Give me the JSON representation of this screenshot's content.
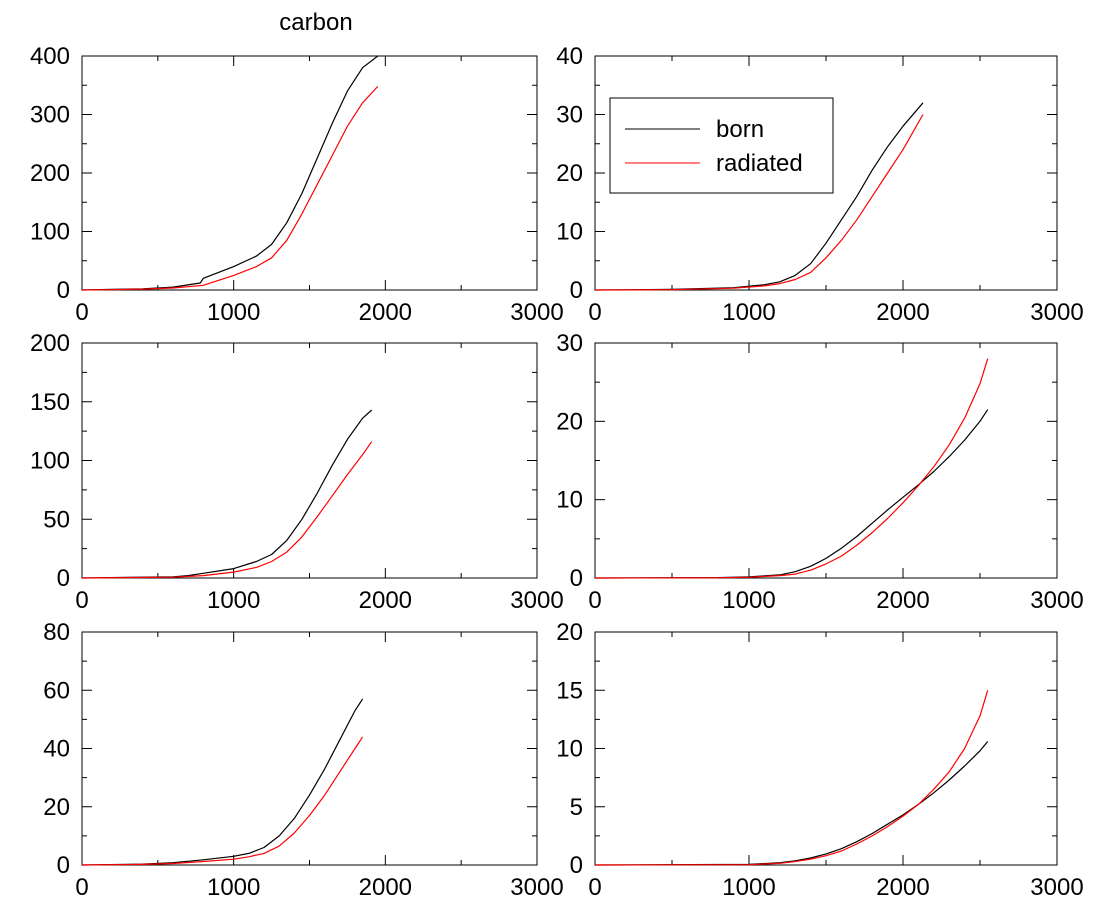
{
  "figure_title": "carbon",
  "legend": {
    "born_label": "born",
    "radiated_label": "radiated",
    "panel": 1,
    "placement": "top-left"
  },
  "colors": {
    "born": "#000000",
    "radiated": "#ff0000",
    "axes": "#000000",
    "background": "#ffffff"
  },
  "chart_data": [
    {
      "type": "line",
      "title": "carbon",
      "xlabel": "",
      "ylabel": "",
      "xlim": [
        0,
        3000
      ],
      "ylim": [
        0,
        400
      ],
      "xticks": [
        0,
        1000,
        2000,
        3000
      ],
      "yticks": [
        0,
        100,
        200,
        300,
        400
      ],
      "series": [
        {
          "name": "born",
          "x": [
            0,
            200,
            400,
            600,
            780,
            800,
            1000,
            1150,
            1250,
            1350,
            1450,
            1550,
            1650,
            1750,
            1850,
            1950
          ],
          "y": [
            0,
            1,
            2,
            5,
            12,
            20,
            40,
            58,
            78,
            115,
            165,
            225,
            285,
            340,
            380,
            400
          ]
        },
        {
          "name": "radiated",
          "x": [
            0,
            200,
            400,
            600,
            800,
            1000,
            1150,
            1250,
            1350,
            1450,
            1550,
            1650,
            1750,
            1850,
            1950
          ],
          "y": [
            0,
            0.5,
            1.5,
            3.5,
            8,
            25,
            40,
            55,
            85,
            130,
            180,
            230,
            280,
            320,
            348
          ]
        }
      ]
    },
    {
      "type": "line",
      "xlabel": "",
      "ylabel": "",
      "xlim": [
        0,
        3000
      ],
      "ylim": [
        0,
        40
      ],
      "xticks": [
        0,
        1000,
        2000,
        3000
      ],
      "yticks": [
        0,
        10,
        20,
        30,
        40
      ],
      "series": [
        {
          "name": "born",
          "x": [
            0,
            500,
            900,
            1100,
            1200,
            1300,
            1400,
            1500,
            1600,
            1700,
            1800,
            1900,
            2000,
            2130
          ],
          "y": [
            0,
            0.1,
            0.4,
            0.9,
            1.4,
            2.5,
            4.5,
            8,
            12,
            16,
            20.5,
            24.5,
            28,
            32
          ]
        },
        {
          "name": "radiated",
          "x": [
            0,
            500,
            900,
            1100,
            1200,
            1300,
            1400,
            1500,
            1600,
            1700,
            1800,
            1900,
            2000,
            2130
          ],
          "y": [
            0,
            0.05,
            0.3,
            0.7,
            1.1,
            1.8,
            3,
            5.5,
            8.5,
            12,
            16,
            20,
            24,
            30
          ]
        }
      ]
    },
    {
      "type": "line",
      "xlabel": "",
      "ylabel": "",
      "xlim": [
        0,
        3000
      ],
      "ylim": [
        0,
        200
      ],
      "xticks": [
        0,
        1000,
        2000,
        3000
      ],
      "yticks": [
        0,
        50,
        100,
        150,
        200
      ],
      "series": [
        {
          "name": "born",
          "x": [
            0,
            300,
            600,
            700,
            800,
            1000,
            1150,
            1250,
            1350,
            1450,
            1550,
            1650,
            1750,
            1850,
            1910
          ],
          "y": [
            0,
            0.5,
            1,
            2,
            4,
            8,
            14,
            20,
            32,
            50,
            72,
            96,
            118,
            136,
            143
          ]
        },
        {
          "name": "radiated",
          "x": [
            0,
            300,
            600,
            800,
            1000,
            1150,
            1250,
            1350,
            1450,
            1550,
            1650,
            1750,
            1850,
            1910
          ],
          "y": [
            0,
            0.3,
            0.7,
            2,
            5,
            9,
            14,
            22,
            35,
            52,
            70,
            88,
            105,
            116
          ]
        }
      ]
    },
    {
      "type": "line",
      "xlabel": "",
      "ylabel": "",
      "xlim": [
        0,
        3000
      ],
      "ylim": [
        0,
        30
      ],
      "xticks": [
        0,
        1000,
        2000,
        3000
      ],
      "yticks": [
        0,
        10,
        20,
        30
      ],
      "series": [
        {
          "name": "born",
          "x": [
            0,
            800,
            1000,
            1200,
            1300,
            1400,
            1500,
            1600,
            1700,
            1800,
            1900,
            2000,
            2100,
            2200,
            2300,
            2400,
            2500,
            2550
          ],
          "y": [
            0,
            0.05,
            0.15,
            0.4,
            0.8,
            1.5,
            2.5,
            3.8,
            5.3,
            7,
            8.7,
            10.3,
            11.9,
            13.6,
            15.5,
            17.6,
            20,
            21.5
          ]
        },
        {
          "name": "radiated",
          "x": [
            0,
            800,
            1000,
            1200,
            1300,
            1400,
            1500,
            1600,
            1700,
            1800,
            1900,
            2000,
            2100,
            2200,
            2300,
            2400,
            2500,
            2550
          ],
          "y": [
            0,
            0.03,
            0.1,
            0.3,
            0.5,
            1,
            1.8,
            2.8,
            4.2,
            5.8,
            7.6,
            9.6,
            11.8,
            14.2,
            17,
            20.4,
            24.8,
            28
          ]
        }
      ]
    },
    {
      "type": "line",
      "xlabel": "",
      "ylabel": "",
      "xlim": [
        0,
        3000
      ],
      "ylim": [
        0,
        80
      ],
      "xticks": [
        0,
        1000,
        2000,
        3000
      ],
      "yticks": [
        0,
        20,
        40,
        60,
        80
      ],
      "series": [
        {
          "name": "born",
          "x": [
            0,
            400,
            600,
            800,
            1000,
            1100,
            1200,
            1300,
            1400,
            1500,
            1600,
            1700,
            1800,
            1850
          ],
          "y": [
            0,
            0.3,
            0.8,
            1.8,
            3,
            4,
            6,
            10,
            16,
            24,
            33,
            43,
            53,
            57
          ]
        },
        {
          "name": "radiated",
          "x": [
            0,
            400,
            600,
            800,
            1000,
            1100,
            1200,
            1300,
            1400,
            1500,
            1600,
            1700,
            1800,
            1850
          ],
          "y": [
            0,
            0.2,
            0.5,
            1.2,
            2,
            2.8,
            4,
            6.5,
            11,
            17,
            24,
            32,
            40,
            44
          ]
        }
      ]
    },
    {
      "type": "line",
      "xlabel": "",
      "ylabel": "",
      "xlim": [
        0,
        3000
      ],
      "ylim": [
        0,
        20
      ],
      "xticks": [
        0,
        1000,
        2000,
        3000
      ],
      "yticks": [
        0,
        5,
        10,
        15,
        20
      ],
      "series": [
        {
          "name": "born",
          "x": [
            0,
            1000,
            1200,
            1300,
            1400,
            1500,
            1600,
            1700,
            1800,
            1900,
            2000,
            2100,
            2200,
            2300,
            2400,
            2500,
            2550
          ],
          "y": [
            0,
            0.05,
            0.2,
            0.35,
            0.6,
            0.95,
            1.4,
            2,
            2.7,
            3.5,
            4.3,
            5.2,
            6.2,
            7.3,
            8.5,
            9.8,
            10.6
          ]
        },
        {
          "name": "radiated",
          "x": [
            0,
            1000,
            1200,
            1300,
            1400,
            1500,
            1600,
            1700,
            1800,
            1900,
            2000,
            2100,
            2200,
            2300,
            2400,
            2500,
            2550
          ],
          "y": [
            0,
            0.03,
            0.15,
            0.3,
            0.5,
            0.8,
            1.2,
            1.8,
            2.5,
            3.3,
            4.2,
            5.2,
            6.5,
            8,
            10,
            12.8,
            15
          ]
        }
      ]
    }
  ]
}
